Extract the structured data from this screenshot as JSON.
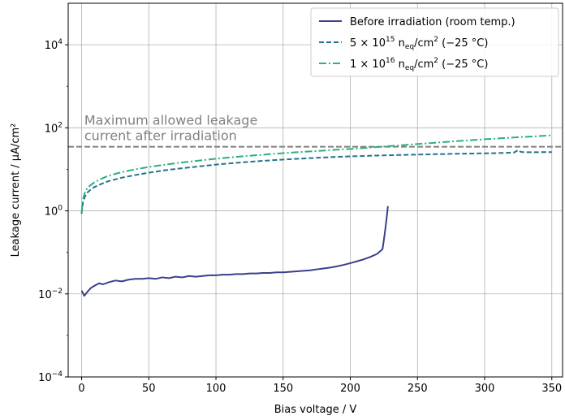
{
  "chart_data": {
    "type": "line",
    "xlabel": "Bias voltage / V",
    "ylabel": "Leakage current / µA/cm²",
    "xlim": [
      -10,
      358
    ],
    "ylim_log10": [
      -4,
      5
    ],
    "yscale": "log",
    "grid": true,
    "legend_position": "top-right",
    "x_ticks": [
      0,
      50,
      100,
      150,
      200,
      250,
      300,
      350
    ],
    "y_ticks": [
      {
        "base": "10",
        "exp": "−4",
        "log": -4
      },
      {
        "base": "10",
        "exp": "−2",
        "log": -2
      },
      {
        "base": "10",
        "exp": "0",
        "log": 0
      },
      {
        "base": "10",
        "exp": "2",
        "log": 2
      },
      {
        "base": "10",
        "exp": "4",
        "log": 4
      }
    ],
    "threshold": {
      "y": 35,
      "label_line1": "Maximum allowed leakage",
      "label_line2": "current after irradiation",
      "color": "#808080"
    },
    "series": [
      {
        "name": "Before irradiation (room temp.)",
        "color": "#3b3f8c",
        "style": "solid",
        "points": [
          [
            0,
            0.012
          ],
          [
            2,
            0.009
          ],
          [
            4,
            0.011
          ],
          [
            7,
            0.014
          ],
          [
            10,
            0.016
          ],
          [
            13,
            0.018
          ],
          [
            16,
            0.017
          ],
          [
            20,
            0.019
          ],
          [
            25,
            0.021
          ],
          [
            30,
            0.02
          ],
          [
            35,
            0.022
          ],
          [
            40,
            0.023
          ],
          [
            45,
            0.023
          ],
          [
            50,
            0.024
          ],
          [
            55,
            0.023
          ],
          [
            60,
            0.025
          ],
          [
            65,
            0.024
          ],
          [
            70,
            0.026
          ],
          [
            75,
            0.025
          ],
          [
            80,
            0.027
          ],
          [
            85,
            0.026
          ],
          [
            90,
            0.027
          ],
          [
            95,
            0.028
          ],
          [
            100,
            0.028
          ],
          [
            105,
            0.029
          ],
          [
            110,
            0.029
          ],
          [
            115,
            0.03
          ],
          [
            120,
            0.03
          ],
          [
            125,
            0.031
          ],
          [
            130,
            0.031
          ],
          [
            135,
            0.032
          ],
          [
            140,
            0.032
          ],
          [
            145,
            0.033
          ],
          [
            150,
            0.033
          ],
          [
            155,
            0.034
          ],
          [
            160,
            0.035
          ],
          [
            165,
            0.036
          ],
          [
            170,
            0.037
          ],
          [
            175,
            0.039
          ],
          [
            180,
            0.041
          ],
          [
            185,
            0.043
          ],
          [
            190,
            0.046
          ],
          [
            195,
            0.05
          ],
          [
            200,
            0.055
          ],
          [
            205,
            0.061
          ],
          [
            210,
            0.068
          ],
          [
            215,
            0.078
          ],
          [
            220,
            0.092
          ],
          [
            224,
            0.12
          ],
          [
            225,
            0.2
          ],
          [
            226,
            0.35
          ],
          [
            227,
            0.65
          ],
          [
            228,
            1.3
          ]
        ]
      },
      {
        "name_prefix": "5 × 10",
        "name_exp": "15",
        "name_mid": " n",
        "name_sub": "eq",
        "name_unit": "/cm",
        "name_unit_exp": "2",
        "name_suffix": " (−25 °C)",
        "color": "#24748a",
        "style": "dashed",
        "points": [
          [
            0,
            0.85
          ],
          [
            0.5,
            1.2
          ],
          [
            1,
            1.6
          ],
          [
            2,
            2.0
          ],
          [
            3,
            2.4
          ],
          [
            4,
            2.7
          ],
          [
            6,
            3.1
          ],
          [
            8,
            3.5
          ],
          [
            10,
            3.8
          ],
          [
            15,
            4.5
          ],
          [
            20,
            5.2
          ],
          [
            30,
            6.3
          ],
          [
            40,
            7.3
          ],
          [
            50,
            8.3
          ],
          [
            60,
            9.3
          ],
          [
            70,
            10.2
          ],
          [
            80,
            11.1
          ],
          [
            90,
            12.0
          ],
          [
            100,
            13.0
          ],
          [
            110,
            13.9
          ],
          [
            120,
            14.8
          ],
          [
            130,
            15.6
          ],
          [
            140,
            16.4
          ],
          [
            150,
            17.2
          ],
          [
            160,
            17.9
          ],
          [
            170,
            18.6
          ],
          [
            180,
            19.3
          ],
          [
            190,
            20.0
          ],
          [
            200,
            20.5
          ],
          [
            220,
            21.5
          ],
          [
            240,
            22.3
          ],
          [
            260,
            23.0
          ],
          [
            280,
            23.7
          ],
          [
            300,
            24.3
          ],
          [
            315,
            24.8
          ],
          [
            322,
            25.5
          ],
          [
            325,
            29
          ],
          [
            327,
            26.2
          ],
          [
            330,
            25.8
          ],
          [
            340,
            25.9
          ],
          [
            350,
            26.0
          ]
        ]
      },
      {
        "name_prefix": "1 × 10",
        "name_exp": "16",
        "name_mid": " n",
        "name_sub": "eq",
        "name_unit": "/cm",
        "name_unit_exp": "2",
        "name_suffix": " (−25 °C)",
        "color": "#2bb07f",
        "style": "dashdot",
        "points": [
          [
            0,
            0.9
          ],
          [
            0.5,
            1.4
          ],
          [
            1,
            1.9
          ],
          [
            2,
            2.5
          ],
          [
            3,
            3.0
          ],
          [
            4,
            3.4
          ],
          [
            6,
            4.0
          ],
          [
            8,
            4.5
          ],
          [
            10,
            5.0
          ],
          [
            15,
            6.0
          ],
          [
            20,
            7.0
          ],
          [
            30,
            8.6
          ],
          [
            40,
            10.0
          ],
          [
            50,
            11.4
          ],
          [
            60,
            12.7
          ],
          [
            70,
            14.0
          ],
          [
            80,
            15.3
          ],
          [
            90,
            16.6
          ],
          [
            100,
            18.0
          ],
          [
            110,
            19.3
          ],
          [
            120,
            20.6
          ],
          [
            130,
            21.9
          ],
          [
            140,
            23.2
          ],
          [
            150,
            24.5
          ],
          [
            160,
            25.8
          ],
          [
            170,
            27.0
          ],
          [
            180,
            28.3
          ],
          [
            190,
            29.7
          ],
          [
            200,
            31.0
          ],
          [
            220,
            34.5
          ],
          [
            240,
            38.5
          ],
          [
            260,
            43.0
          ],
          [
            280,
            48.0
          ],
          [
            300,
            53.0
          ],
          [
            320,
            58.0
          ],
          [
            340,
            63.0
          ],
          [
            350,
            66.0
          ]
        ]
      }
    ],
    "legend": {
      "entry0": "Before irradiation (room temp.)"
    }
  }
}
